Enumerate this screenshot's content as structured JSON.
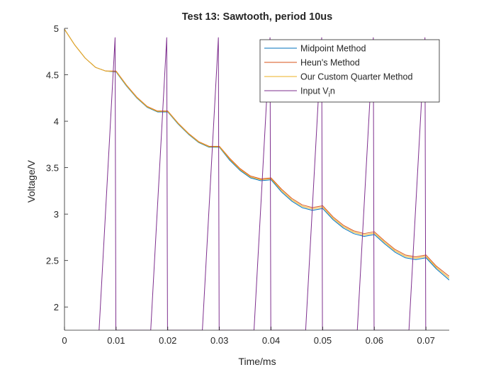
{
  "chart_data": {
    "type": "line",
    "title": "Test 13: Sawtooth, period 10us",
    "xlabel": "Time/ms",
    "ylabel": "Voltage/V",
    "xlim": [
      0,
      0.0745
    ],
    "ylim": [
      1.75,
      5.0
    ],
    "xticks": [
      0,
      0.01,
      0.02,
      0.03,
      0.04,
      0.05,
      0.06,
      0.07
    ],
    "xtick_labels": [
      "0",
      "0.01",
      "0.02",
      "0.03",
      "0.04",
      "0.05",
      "0.06",
      "0.07"
    ],
    "yticks": [
      2,
      2.5,
      3,
      3.5,
      4,
      4.5,
      5
    ],
    "ytick_labels": [
      "2",
      "2.5",
      "3",
      "3.5",
      "4",
      "4.5",
      "5"
    ],
    "grid": false,
    "legend_location": "top-right",
    "series": [
      {
        "name": "Midpoint Method",
        "color": "#0072BD",
        "x": [
          0,
          0.002,
          0.004,
          0.006,
          0.008,
          0.01,
          0.012,
          0.014,
          0.016,
          0.018,
          0.02,
          0.022,
          0.024,
          0.026,
          0.028,
          0.03,
          0.032,
          0.034,
          0.036,
          0.038,
          0.04,
          0.042,
          0.044,
          0.046,
          0.048,
          0.05,
          0.052,
          0.054,
          0.056,
          0.058,
          0.06,
          0.062,
          0.064,
          0.066,
          0.068,
          0.07,
          0.072,
          0.0745
        ],
        "y": [
          4.99,
          4.82,
          4.68,
          4.58,
          4.54,
          4.53,
          4.38,
          4.25,
          4.15,
          4.1,
          4.1,
          3.97,
          3.86,
          3.77,
          3.72,
          3.72,
          3.58,
          3.47,
          3.39,
          3.36,
          3.37,
          3.24,
          3.14,
          3.07,
          3.04,
          3.06,
          2.94,
          2.85,
          2.79,
          2.76,
          2.78,
          2.68,
          2.59,
          2.53,
          2.51,
          2.53,
          2.41,
          2.29
        ]
      },
      {
        "name": "Heun's Method",
        "color": "#D95319",
        "x": [
          0,
          0.002,
          0.004,
          0.006,
          0.008,
          0.01,
          0.012,
          0.014,
          0.016,
          0.018,
          0.02,
          0.022,
          0.024,
          0.026,
          0.028,
          0.03,
          0.032,
          0.034,
          0.036,
          0.038,
          0.04,
          0.042,
          0.044,
          0.046,
          0.048,
          0.05,
          0.052,
          0.054,
          0.056,
          0.058,
          0.06,
          0.062,
          0.064,
          0.066,
          0.068,
          0.07,
          0.072,
          0.0745
        ],
        "y": [
          4.99,
          4.82,
          4.68,
          4.58,
          4.54,
          4.54,
          4.39,
          4.26,
          4.16,
          4.11,
          4.11,
          3.98,
          3.87,
          3.78,
          3.73,
          3.73,
          3.6,
          3.49,
          3.41,
          3.38,
          3.39,
          3.27,
          3.17,
          3.1,
          3.07,
          3.09,
          2.97,
          2.88,
          2.82,
          2.79,
          2.81,
          2.71,
          2.62,
          2.56,
          2.54,
          2.56,
          2.44,
          2.33
        ]
      },
      {
        "name": "Our Custom Quarter Method",
        "color": "#EDB120",
        "x": [
          0,
          0.002,
          0.004,
          0.006,
          0.008,
          0.01,
          0.012,
          0.014,
          0.016,
          0.018,
          0.02,
          0.022,
          0.024,
          0.026,
          0.028,
          0.03,
          0.032,
          0.034,
          0.036,
          0.038,
          0.04,
          0.042,
          0.044,
          0.046,
          0.048,
          0.05,
          0.052,
          0.054,
          0.056,
          0.058,
          0.06,
          0.062,
          0.064,
          0.066,
          0.068,
          0.07,
          0.072,
          0.0745
        ],
        "y": [
          4.99,
          4.82,
          4.68,
          4.58,
          4.54,
          4.535,
          4.385,
          4.255,
          4.155,
          4.105,
          4.105,
          3.975,
          3.865,
          3.775,
          3.725,
          3.725,
          3.59,
          3.48,
          3.4,
          3.37,
          3.38,
          3.255,
          3.155,
          3.085,
          3.055,
          3.075,
          2.955,
          2.865,
          2.805,
          2.775,
          2.795,
          2.695,
          2.605,
          2.545,
          2.525,
          2.545,
          2.425,
          2.31
        ]
      },
      {
        "name": "Input V_in",
        "color": "#7E2F8E",
        "x": [
          0.0067,
          0.0098,
          0.00995,
          0.0167,
          0.0198,
          0.01995,
          0.0267,
          0.0298,
          0.02995,
          0.0367,
          0.0398,
          0.03995,
          0.0467,
          0.0498,
          0.04995,
          0.0567,
          0.0598,
          0.05995,
          0.0667,
          0.0698,
          0.06995
        ],
        "y": [
          1.75,
          4.9,
          1.75,
          1.75,
          4.9,
          1.75,
          1.75,
          4.9,
          1.75,
          1.75,
          4.9,
          1.75,
          1.75,
          4.9,
          1.75,
          1.75,
          4.9,
          1.75,
          1.75,
          4.9,
          1.75
        ]
      }
    ]
  }
}
